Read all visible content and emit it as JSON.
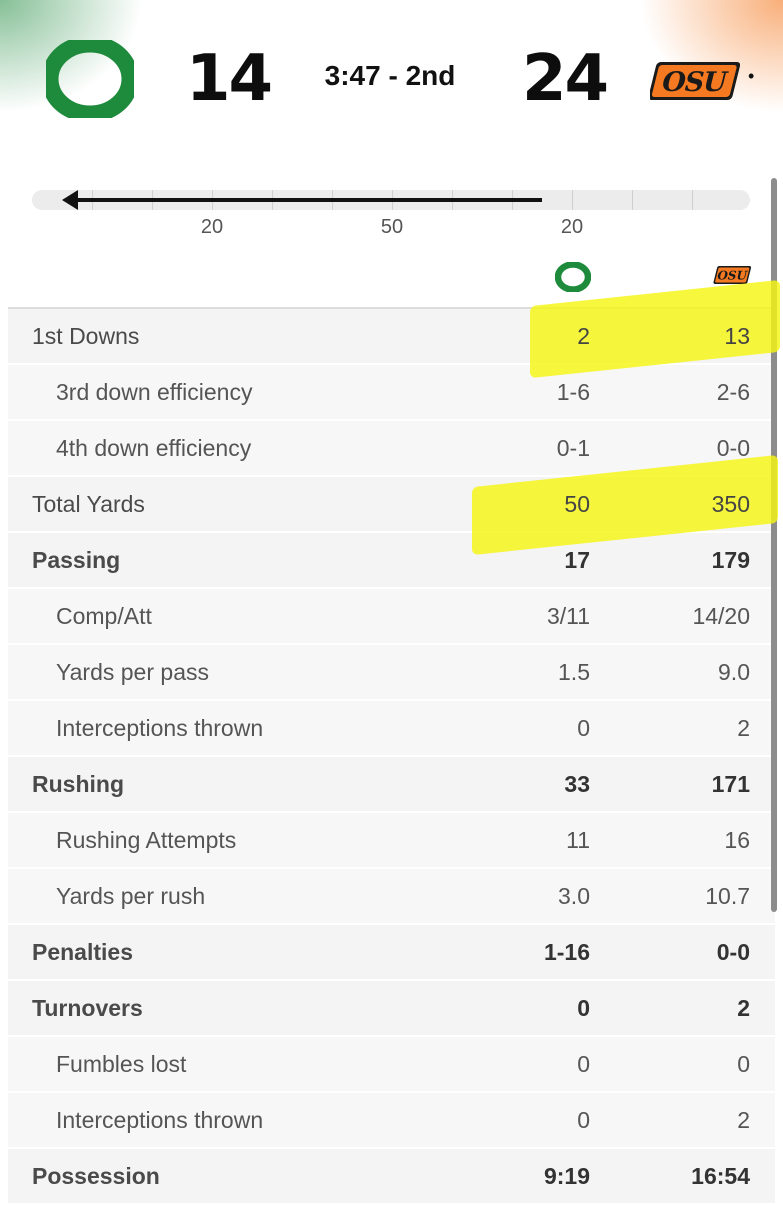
{
  "scoreboard": {
    "away_team_logo": "oregon-o-logo",
    "away_score": "14",
    "clock": "3:47 - 2nd",
    "home_score": "24",
    "home_team_logo": "osu-logo",
    "possession_marker": "•",
    "colors": {
      "oregon_green": "#1d8a3c",
      "osu_orange": "#f47920",
      "highlight": "#f5f514"
    }
  },
  "field": {
    "yard_labels": [
      "20",
      "50",
      "20"
    ],
    "drive_direction": "left"
  },
  "stats": [
    {
      "label": "1st Downs",
      "away": "2",
      "home": "13",
      "type": "main-plain",
      "highlighted": true
    },
    {
      "label": "3rd down efficiency",
      "away": "1-6",
      "home": "2-6",
      "type": "sub"
    },
    {
      "label": "4th down efficiency",
      "away": "0-1",
      "home": "0-0",
      "type": "sub"
    },
    {
      "label": "Total Yards",
      "away": "50",
      "home": "350",
      "type": "main-plain",
      "highlighted": true
    },
    {
      "label": "Passing",
      "away": "17",
      "home": "179",
      "type": "main"
    },
    {
      "label": "Comp/Att",
      "away": "3/11",
      "home": "14/20",
      "type": "sub"
    },
    {
      "label": "Yards per pass",
      "away": "1.5",
      "home": "9.0",
      "type": "sub"
    },
    {
      "label": "Interceptions thrown",
      "away": "0",
      "home": "2",
      "type": "sub"
    },
    {
      "label": "Rushing",
      "away": "33",
      "home": "171",
      "type": "main"
    },
    {
      "label": "Rushing Attempts",
      "away": "11",
      "home": "16",
      "type": "sub"
    },
    {
      "label": "Yards per rush",
      "away": "3.0",
      "home": "10.7",
      "type": "sub"
    },
    {
      "label": "Penalties",
      "away": "1-16",
      "home": "0-0",
      "type": "main"
    },
    {
      "label": "Turnovers",
      "away": "0",
      "home": "2",
      "type": "main"
    },
    {
      "label": "Fumbles lost",
      "away": "0",
      "home": "0",
      "type": "sub"
    },
    {
      "label": "Interceptions thrown",
      "away": "0",
      "home": "2",
      "type": "sub"
    },
    {
      "label": "Possession",
      "away": "9:19",
      "home": "16:54",
      "type": "main"
    }
  ]
}
